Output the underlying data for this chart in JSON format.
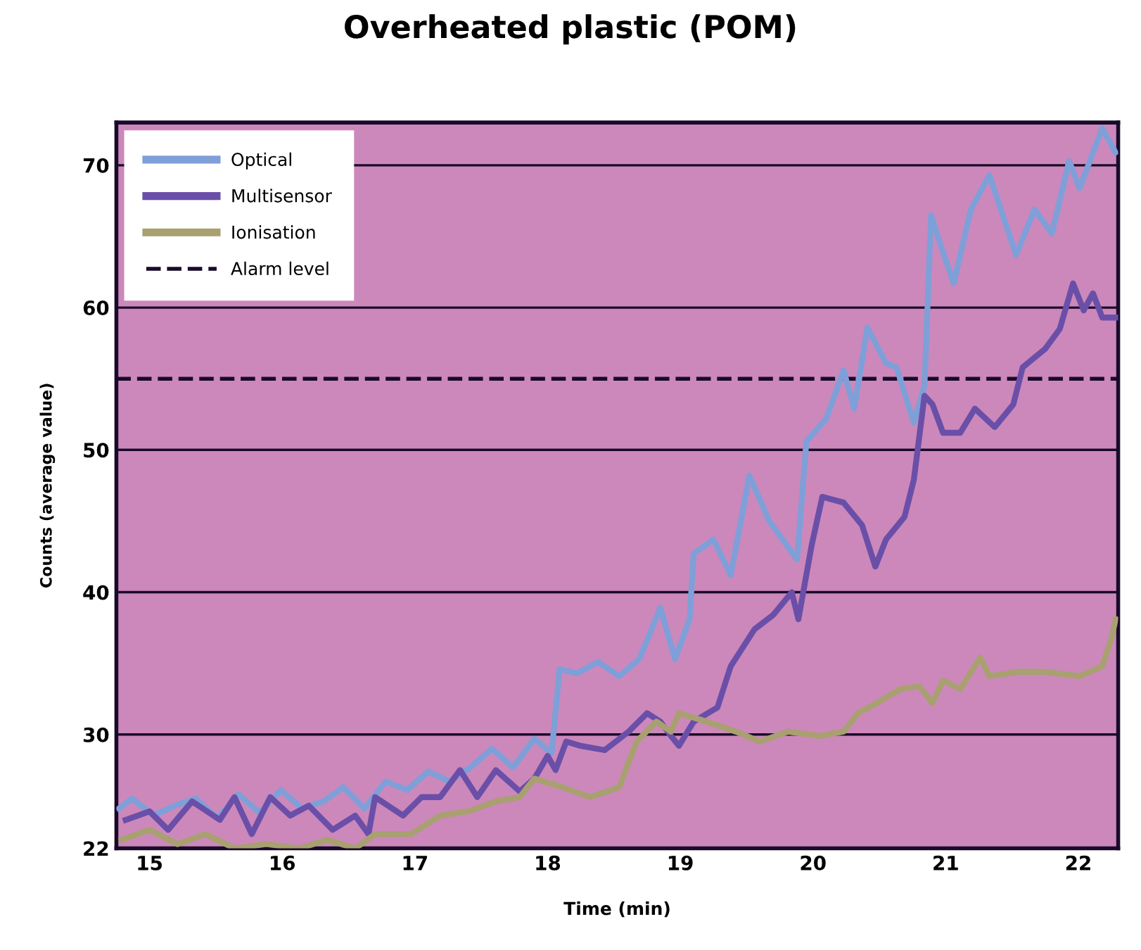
{
  "chart_data": {
    "type": "line",
    "title": "Overheated plastic (POM)",
    "xlabel": "Time (min)",
    "ylabel": "Counts (average value)",
    "xlim": [
      14.75,
      22.3
    ],
    "xticks": [
      15,
      16,
      17,
      18,
      19,
      20,
      21,
      22
    ],
    "ylim": [
      22,
      73
    ],
    "yticks": [
      22,
      30,
      40,
      50,
      60,
      70
    ],
    "grid": "y",
    "legend": "top left",
    "line_style": "solid",
    "marker": "none",
    "ref_lines": [
      {
        "axis": "y",
        "value": 55,
        "label": "Alarm level",
        "color": "#1a0a2a",
        "line_style": "dashed"
      }
    ],
    "series": [
      {
        "name": "Optical",
        "color": "#7f9fd8",
        "x": [
          14.77,
          14.87,
          15.03,
          15.19,
          15.35,
          15.51,
          15.67,
          15.83,
          15.99,
          16.15,
          16.31,
          16.46,
          16.62,
          16.78,
          16.94,
          17.1,
          17.26,
          17.42,
          17.58,
          17.74,
          17.9,
          18.03,
          18.09,
          18.22,
          18.38,
          18.54,
          18.69,
          18.85,
          18.96,
          19.07,
          19.1,
          19.25,
          19.38,
          19.52,
          19.67,
          19.88,
          19.95,
          20.1,
          20.23,
          20.31,
          20.41,
          20.55,
          20.63,
          20.76,
          20.84,
          20.89,
          20.94,
          21.06,
          21.19,
          21.33,
          21.53,
          21.67,
          21.8,
          21.93,
          22.01,
          22.18,
          22.28
        ],
        "values": [
          24.8,
          25.5,
          24.3,
          25.0,
          25.5,
          24.1,
          25.8,
          24.5,
          26.1,
          24.8,
          25.3,
          26.3,
          24.8,
          26.7,
          26.1,
          27.4,
          26.7,
          27.7,
          29.0,
          27.7,
          29.7,
          28.7,
          34.6,
          34.3,
          35.1,
          34.1,
          35.3,
          38.9,
          35.3,
          38.1,
          42.7,
          43.7,
          41.2,
          48.2,
          45.0,
          42.3,
          50.6,
          52.2,
          55.6,
          52.9,
          58.6,
          56.1,
          55.8,
          51.9,
          54.5,
          66.5,
          65.0,
          61.7,
          66.9,
          69.3,
          63.7,
          66.9,
          65.2,
          70.3,
          68.4,
          72.6,
          70.9
        ]
      },
      {
        "name": "Multisensor",
        "color": "#6a4fa8",
        "x": [
          14.82,
          15.0,
          15.14,
          15.32,
          15.53,
          15.64,
          15.77,
          15.91,
          16.06,
          16.2,
          16.38,
          16.55,
          16.65,
          16.7,
          16.91,
          17.05,
          17.19,
          17.34,
          17.47,
          17.61,
          17.79,
          17.9,
          18.0,
          18.06,
          18.14,
          18.25,
          18.43,
          18.61,
          18.75,
          18.85,
          18.93,
          18.99,
          19.1,
          19.28,
          19.38,
          19.56,
          19.7,
          19.84,
          19.89,
          19.99,
          20.07,
          20.23,
          20.37,
          20.47,
          20.55,
          20.69,
          20.76,
          20.84,
          20.9,
          20.98,
          21.11,
          21.22,
          21.37,
          21.51,
          21.58,
          21.75,
          21.86,
          21.96,
          22.04,
          22.11,
          22.18,
          22.28
        ],
        "values": [
          24.0,
          24.6,
          23.3,
          25.3,
          24.0,
          25.6,
          23.0,
          25.6,
          24.3,
          25.0,
          23.3,
          24.3,
          23.0,
          25.6,
          24.3,
          25.6,
          25.6,
          27.5,
          25.6,
          27.5,
          26.0,
          26.9,
          28.5,
          27.5,
          29.5,
          29.2,
          28.9,
          30.2,
          31.5,
          30.9,
          29.9,
          29.2,
          30.9,
          31.9,
          34.8,
          37.4,
          38.4,
          40.0,
          38.1,
          43.3,
          46.7,
          46.3,
          44.7,
          41.8,
          43.7,
          45.3,
          47.9,
          53.8,
          53.2,
          51.2,
          51.2,
          52.9,
          51.6,
          53.2,
          55.8,
          57.1,
          58.5,
          61.7,
          59.8,
          61.0,
          59.3,
          59.3
        ]
      },
      {
        "name": "Ionisation",
        "color": "#a8a070",
        "x": [
          14.79,
          15.0,
          15.21,
          15.42,
          15.64,
          15.88,
          16.13,
          16.34,
          16.55,
          16.7,
          16.97,
          17.19,
          17.4,
          17.61,
          17.79,
          17.9,
          18.11,
          18.32,
          18.54,
          18.67,
          18.82,
          18.93,
          18.99,
          19.2,
          19.42,
          19.6,
          19.81,
          20.05,
          20.23,
          20.34,
          20.48,
          20.66,
          20.8,
          20.9,
          20.98,
          21.11,
          21.26,
          21.33,
          21.54,
          21.75,
          22.01,
          22.18,
          22.25,
          22.28
        ],
        "values": [
          22.6,
          23.3,
          22.3,
          23.0,
          22.0,
          22.3,
          22.0,
          22.6,
          22.0,
          23.0,
          23.0,
          24.3,
          24.6,
          25.3,
          25.6,
          26.9,
          26.3,
          25.6,
          26.3,
          29.5,
          30.9,
          30.2,
          31.5,
          30.9,
          30.2,
          29.5,
          30.2,
          29.9,
          30.2,
          31.5,
          32.2,
          33.2,
          33.4,
          32.2,
          33.8,
          33.2,
          35.4,
          34.1,
          34.4,
          34.4,
          34.1,
          34.8,
          36.8,
          38.1
        ]
      }
    ]
  }
}
